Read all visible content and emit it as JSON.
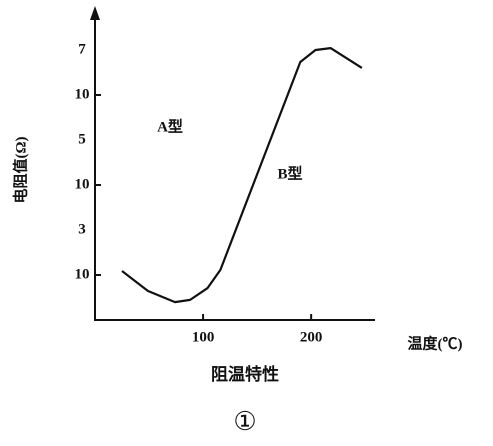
{
  "chart_data": {
    "type": "line",
    "y_label": "电阻值(Ω)",
    "x_label": "温度(℃)",
    "caption": "阻温特性",
    "figure_number": "①",
    "annotations": [
      "A型",
      "B型"
    ],
    "x": [
      25,
      49,
      74,
      88,
      104,
      116,
      190,
      204,
      218,
      247
    ],
    "series": [
      {
        "name": "B型",
        "color": "#111111",
        "values": [
          1230,
          440,
          250,
          280,
          510,
          1300,
          54000000,
          100000000,
          110000000,
          40000000
        ]
      }
    ],
    "xlim": [
      0,
      260
    ],
    "xticks": [
      100,
      200
    ],
    "ylim": [
      100,
      1000000000
    ],
    "log_y": true,
    "yticks": [
      {
        "value": 1000,
        "label": "10",
        "exponent": "3"
      },
      {
        "value": 100000,
        "label": "10",
        "exponent": "5"
      },
      {
        "value": 10000000,
        "label": "10",
        "exponent": "7"
      }
    ]
  }
}
